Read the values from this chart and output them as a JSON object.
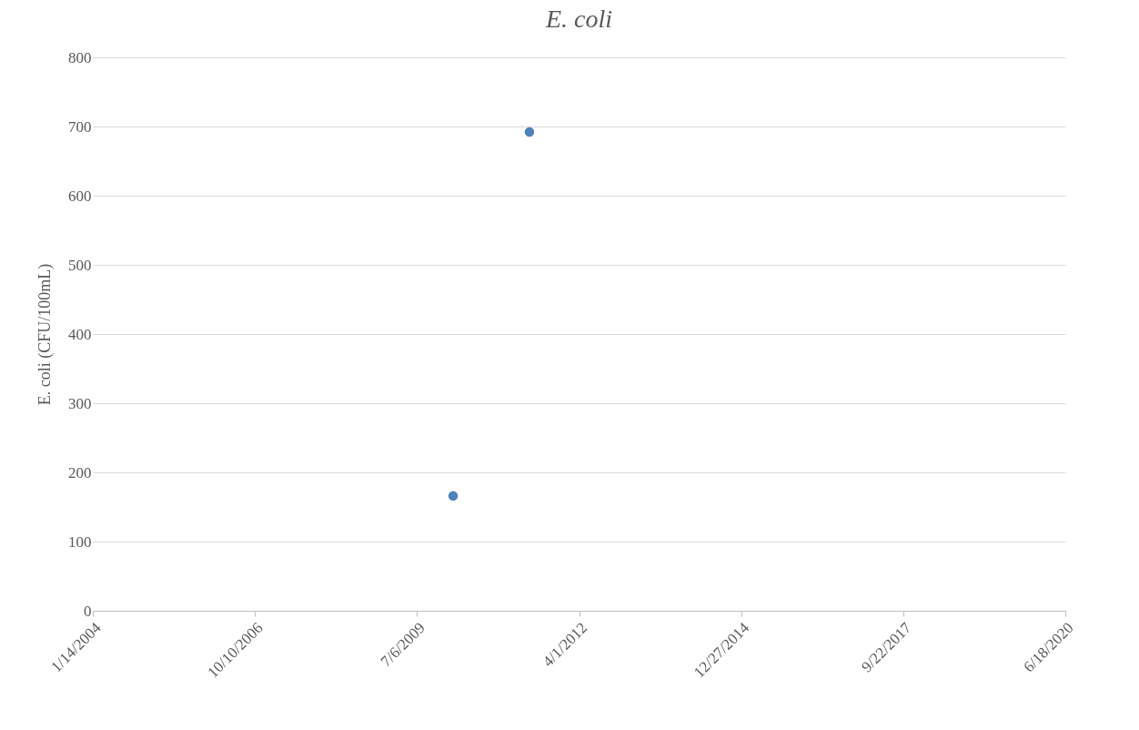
{
  "chart_data": {
    "type": "scatter",
    "title": "E. coli",
    "ylabel": "E. coli (CFU/100mL)",
    "x": [
      "2010-02-14",
      "2011-05-31"
    ],
    "series": [
      {
        "color": "#4e81bd",
        "values": [
          166,
          692
        ]
      }
    ],
    "xlim": [
      "2004-01-14",
      "2020-06-18"
    ],
    "xticks": [
      {
        "value": "2004-01-14",
        "label": "1/14/2004"
      },
      {
        "value": "2006-10-10",
        "label": "10/10/2006"
      },
      {
        "value": "2009-07-06",
        "label": "7/6/2009"
      },
      {
        "value": "2012-04-01",
        "label": "4/1/2012"
      },
      {
        "value": "2014-12-27",
        "label": "12/27/2014"
      },
      {
        "value": "2017-09-22",
        "label": "9/22/2017"
      },
      {
        "value": "2020-06-18",
        "label": "6/18/2020"
      }
    ],
    "ylim": [
      0,
      800
    ],
    "yticks": [
      0,
      100,
      200,
      300,
      400,
      500,
      600,
      700,
      800
    ],
    "grid": "y",
    "marker": "circle",
    "legend": false
  }
}
